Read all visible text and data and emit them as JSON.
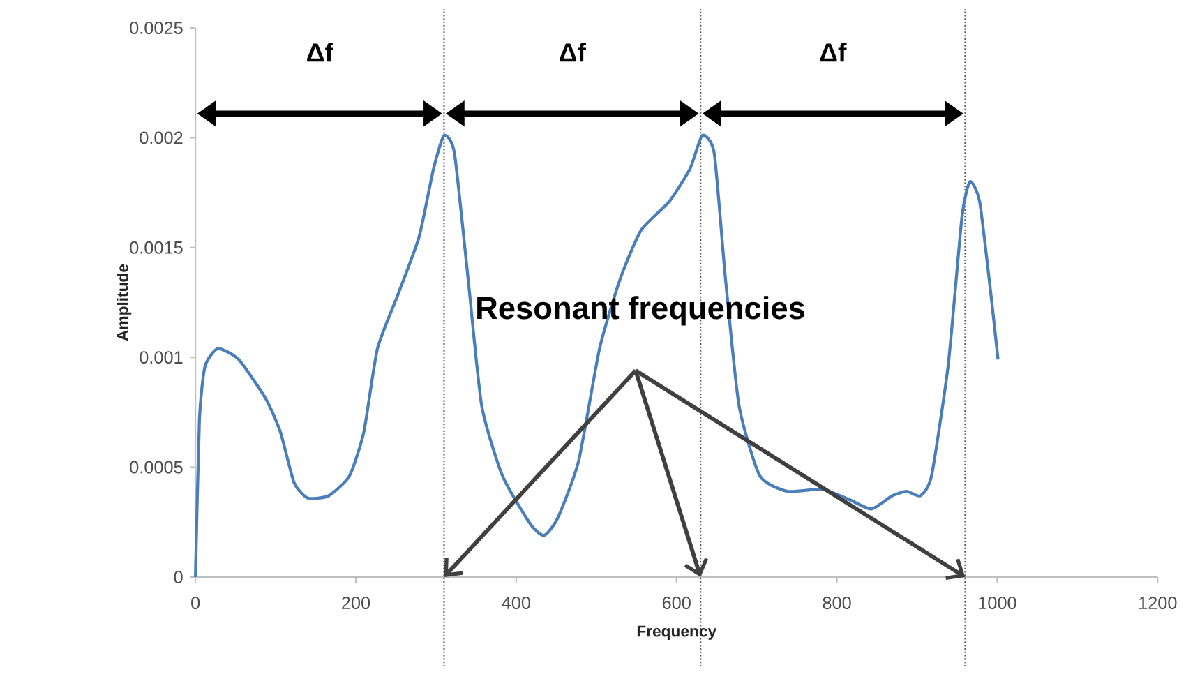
{
  "chart_data": {
    "type": "line",
    "xlabel": "Frequency",
    "ylabel": "Amplitude",
    "xlim": [
      0,
      1200
    ],
    "ylim": [
      0,
      0.0025
    ],
    "xticks": [
      0,
      200,
      400,
      600,
      800,
      1000,
      1200
    ],
    "yticks": [
      0,
      0.0005,
      0.001,
      0.0015,
      0.002,
      0.0025
    ],
    "grid": false,
    "marker": "none",
    "line_style": "solid",
    "series": [
      {
        "color": "#4a7ebb",
        "x": [
          0,
          5,
          12,
          28,
          54,
          88,
          106,
          123,
          140,
          166,
          192,
          210,
          227,
          253,
          279,
          297,
          310,
          323,
          340,
          357,
          383,
          418,
          435,
          452,
          478,
          504,
          530,
          556,
          591,
          617,
          632,
          647,
          661,
          678,
          704,
          739,
          782,
          817,
          843,
          869,
          887,
          904,
          918,
          939,
          956,
          966,
          978,
          992,
          1001
        ],
        "values": [
          0,
          0.00072,
          0.00096,
          0.00104,
          0.00099,
          0.00081,
          0.00066,
          0.00043,
          0.00036,
          0.00037,
          0.00046,
          0.00066,
          0.00104,
          0.00129,
          0.00155,
          0.00186,
          0.00201,
          0.00193,
          0.00136,
          0.00078,
          0.00046,
          0.00024,
          0.00019,
          0.00027,
          0.00053,
          0.00104,
          0.00136,
          0.00158,
          0.00171,
          0.00186,
          0.00201,
          0.00193,
          0.00136,
          0.00078,
          0.00046,
          0.00039,
          0.0004,
          0.00035,
          0.00031,
          0.00037,
          0.00039,
          0.00037,
          0.00046,
          0.00097,
          0.00164,
          0.0018,
          0.00171,
          0.00129,
          0.00099
        ]
      }
    ],
    "ref_lines": [
      {
        "axis": "x",
        "value": 310,
        "color": "#555555",
        "line_style": "dotted"
      },
      {
        "axis": "x",
        "value": 630,
        "color": "#555555",
        "line_style": "dotted"
      },
      {
        "axis": "x",
        "value": 960,
        "color": "#555555",
        "line_style": "dotted"
      }
    ],
    "annotations": [
      "Δf",
      "Δf",
      "Δf",
      "Resonant frequencies"
    ]
  }
}
